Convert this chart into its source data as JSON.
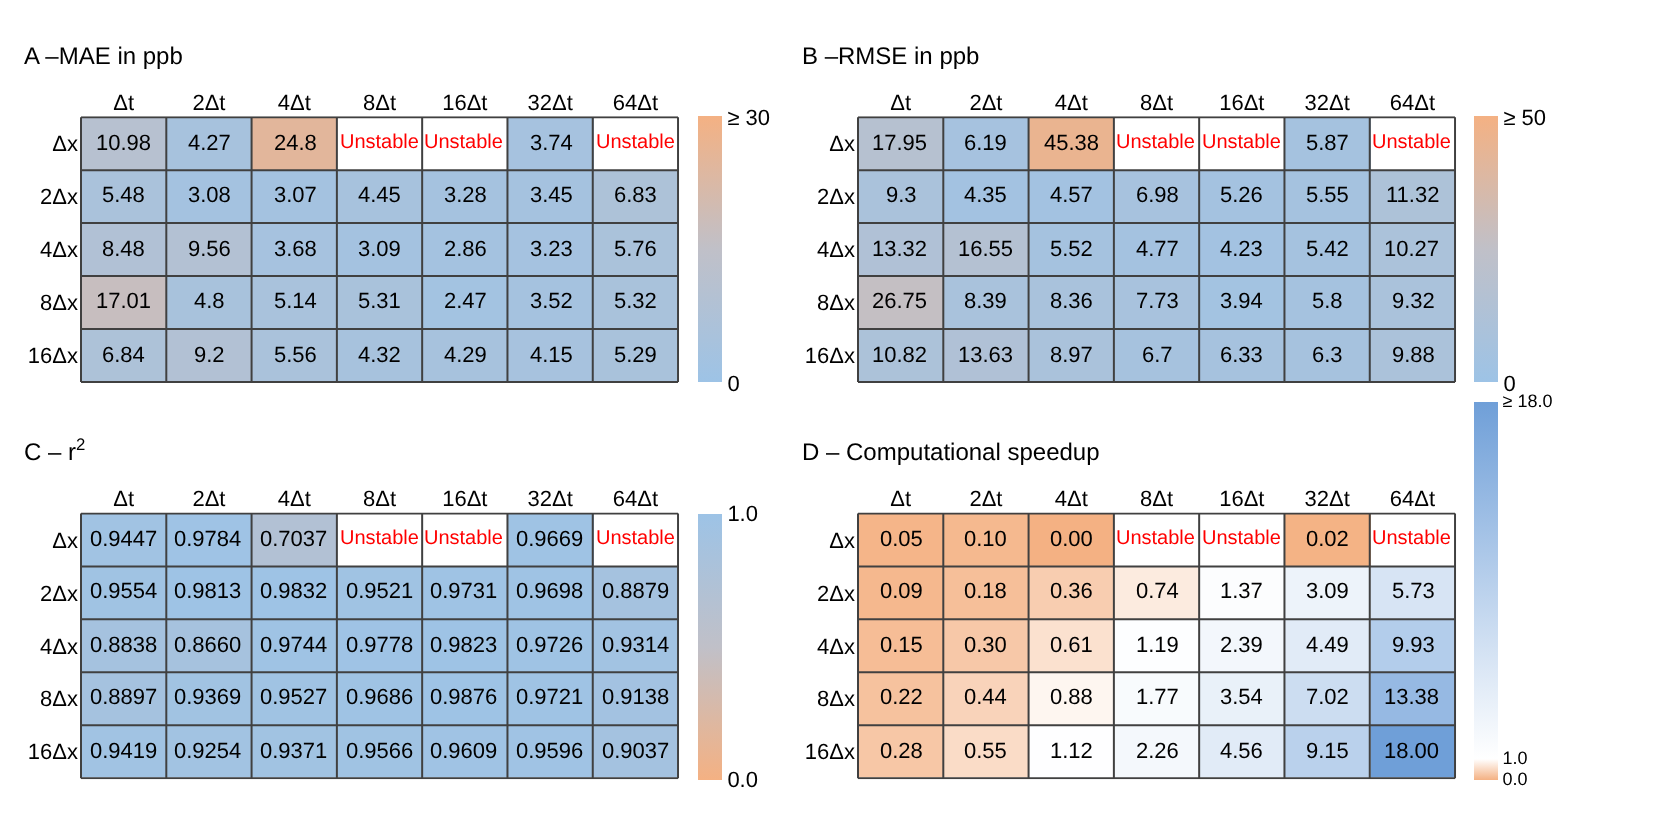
{
  "chart_data": [
    {
      "type": "heatmap",
      "title": "A –MAE in ppb",
      "categories": [
        "Δt",
        "2Δt",
        "4Δt",
        "8Δt",
        "16Δt",
        "32Δt",
        "64Δt"
      ],
      "y_categories": [
        "Δx",
        "2Δx",
        "4Δx",
        "8Δx",
        "16Δx"
      ],
      "cells": [
        [
          10.98,
          4.27,
          24.8,
          null,
          null,
          3.74,
          null
        ],
        [
          5.48,
          3.08,
          3.07,
          4.45,
          3.28,
          3.45,
          6.83
        ],
        [
          8.48,
          9.56,
          3.68,
          3.09,
          2.86,
          3.23,
          5.76
        ],
        [
          17.01,
          4.8,
          5.14,
          5.31,
          2.47,
          3.52,
          5.32
        ],
        [
          6.84,
          9.2,
          5.56,
          4.32,
          4.29,
          4.15,
          5.29
        ]
      ],
      "cell_labels": [
        [
          "10.98",
          "4.27",
          "24.8",
          "Unstable",
          "Unstable",
          "3.74",
          "Unstable"
        ],
        [
          "5.48",
          "3.08",
          "3.07",
          "4.45",
          "3.28",
          "3.45",
          "6.83"
        ],
        [
          "8.48",
          "9.56",
          "3.68",
          "3.09",
          "2.86",
          "3.23",
          "5.76"
        ],
        [
          "17.01",
          "4.8",
          "5.14",
          "5.31",
          "2.47",
          "3.52",
          "5.32"
        ],
        [
          "6.84",
          "9.2",
          "5.56",
          "4.32",
          "4.29",
          "4.15",
          "5.29"
        ]
      ],
      "colors": [
        "#9dc3e6",
        "#c0c0c8",
        "#f4b183"
      ],
      "clim": [
        0,
        30
      ],
      "cticks": [
        0,
        {
          "value": 30,
          "label": "≥ 30"
        }
      ]
    },
    {
      "type": "heatmap",
      "title": "B –RMSE in ppb",
      "categories": [
        "Δt",
        "2Δt",
        "4Δt",
        "8Δt",
        "16Δt",
        "32Δt",
        "64Δt"
      ],
      "y_categories": [
        "Δx",
        "2Δx",
        "4Δx",
        "8Δx",
        "16Δx"
      ],
      "cells": [
        [
          17.95,
          6.19,
          45.38,
          null,
          null,
          5.87,
          null
        ],
        [
          9.3,
          4.35,
          4.57,
          6.98,
          5.26,
          5.55,
          11.32
        ],
        [
          13.32,
          16.55,
          5.52,
          4.77,
          4.23,
          5.42,
          10.27
        ],
        [
          26.75,
          8.39,
          8.36,
          7.73,
          3.94,
          5.8,
          9.32
        ],
        [
          10.82,
          13.63,
          8.97,
          6.7,
          6.33,
          6.3,
          9.88
        ]
      ],
      "cell_labels": [
        [
          "17.95",
          "6.19",
          "45.38",
          "Unstable",
          "Unstable",
          "5.87",
          "Unstable"
        ],
        [
          "9.3",
          "4.35",
          "4.57",
          "6.98",
          "5.26",
          "5.55",
          "11.32"
        ],
        [
          "13.32",
          "16.55",
          "5.52",
          "4.77",
          "4.23",
          "5.42",
          "10.27"
        ],
        [
          "26.75",
          "8.39",
          "8.36",
          "7.73",
          "3.94",
          "5.8",
          "9.32"
        ],
        [
          "10.82",
          "13.63",
          "8.97",
          "6.7",
          "6.33",
          "6.3",
          "9.88"
        ]
      ],
      "colors": [
        "#9dc3e6",
        "#c0c0c8",
        "#f4b183"
      ],
      "clim": [
        0,
        50
      ],
      "cticks": [
        0,
        {
          "value": 50,
          "label": "≥ 50"
        }
      ]
    },
    {
      "type": "heatmap",
      "title": "C – r$^{2}$",
      "categories": [
        "Δt",
        "2Δt",
        "4Δt",
        "8Δt",
        "16Δt",
        "32Δt",
        "64Δt"
      ],
      "y_categories": [
        "Δx",
        "2Δx",
        "4Δx",
        "8Δx",
        "16Δx"
      ],
      "cells": [
        [
          0.9447,
          0.9784,
          0.7037,
          null,
          null,
          0.9669,
          null
        ],
        [
          0.9554,
          0.9813,
          0.9832,
          0.9521,
          0.9731,
          0.9698,
          0.8879
        ],
        [
          0.8838,
          0.866,
          0.9744,
          0.9778,
          0.9823,
          0.9726,
          0.9314
        ],
        [
          0.8897,
          0.9369,
          0.9527,
          0.9686,
          0.9876,
          0.9721,
          0.9138
        ],
        [
          0.9419,
          0.9254,
          0.9371,
          0.9566,
          0.9609,
          0.9596,
          0.9037
        ]
      ],
      "cell_labels": [
        [
          "0.9447",
          "0.9784",
          "0.7037",
          "Unstable",
          "Unstable",
          "0.9669",
          "Unstable"
        ],
        [
          "0.9554",
          "0.9813",
          "0.9832",
          "0.9521",
          "0.9731",
          "0.9698",
          "0.8879"
        ],
        [
          "0.8838",
          "0.8660",
          "0.9744",
          "0.9778",
          "0.9823",
          "0.9726",
          "0.9314"
        ],
        [
          "0.8897",
          "0.9369",
          "0.9527",
          "0.9686",
          "0.9876",
          "0.9721",
          "0.9138"
        ],
        [
          "0.9419",
          "0.9254",
          "0.9371",
          "0.9566",
          "0.9609",
          "0.9596",
          "0.9037"
        ]
      ],
      "colors": [
        "#f4b183",
        "#c0c0c8",
        "#9dc3e6"
      ],
      "clim": [
        0,
        1
      ],
      "cticks": [
        {
          "value": 0,
          "label": "0.0"
        },
        {
          "value": 1,
          "label": "1.0"
        }
      ]
    },
    {
      "type": "heatmap",
      "title": "D – Computational speedup",
      "categories": [
        "Δt",
        "2Δt",
        "4Δt",
        "8Δt",
        "16Δt",
        "32Δt",
        "64Δt"
      ],
      "y_categories": [
        "Δx",
        "2Δx",
        "4Δx",
        "8Δx",
        "16Δx"
      ],
      "cells": [
        [
          0.05,
          0.1,
          0,
          null,
          null,
          0.02,
          null
        ],
        [
          0.09,
          0.18,
          0.36,
          0.74,
          1.37,
          3.09,
          5.73
        ],
        [
          0.15,
          0.3,
          0.61,
          1.19,
          2.39,
          4.49,
          9.93
        ],
        [
          0.22,
          0.44,
          0.88,
          1.77,
          3.54,
          7.02,
          13.38
        ],
        [
          0.28,
          0.55,
          1.12,
          2.26,
          4.56,
          9.15,
          18
        ]
      ],
      "cell_labels": [
        [
          "0.05",
          "0.10",
          "0.00",
          "Unstable",
          "Unstable",
          "0.02",
          "Unstable"
        ],
        [
          "0.09",
          "0.18",
          "0.36",
          "0.74",
          "1.37",
          "3.09",
          "5.73"
        ],
        [
          "0.15",
          "0.30",
          "0.61",
          "1.19",
          "2.39",
          "4.49",
          "9.93"
        ],
        [
          "0.22",
          "0.44",
          "0.88",
          "1.77",
          "3.54",
          "7.02",
          "13.38"
        ],
        [
          "0.28",
          "0.55",
          "1.12",
          "2.26",
          "4.56",
          "9.15",
          "18.00"
        ]
      ],
      "colors": [
        "#f4b183",
        "#ffffff",
        "#6f9fd8"
      ],
      "clim": [
        0,
        18
      ],
      "cticks": [
        {
          "value": 0,
          "label": "0.0"
        },
        {
          "value": 1,
          "label": "1.0"
        },
        {
          "value": 18,
          "label": "≥ 18.0"
        }
      ]
    }
  ]
}
